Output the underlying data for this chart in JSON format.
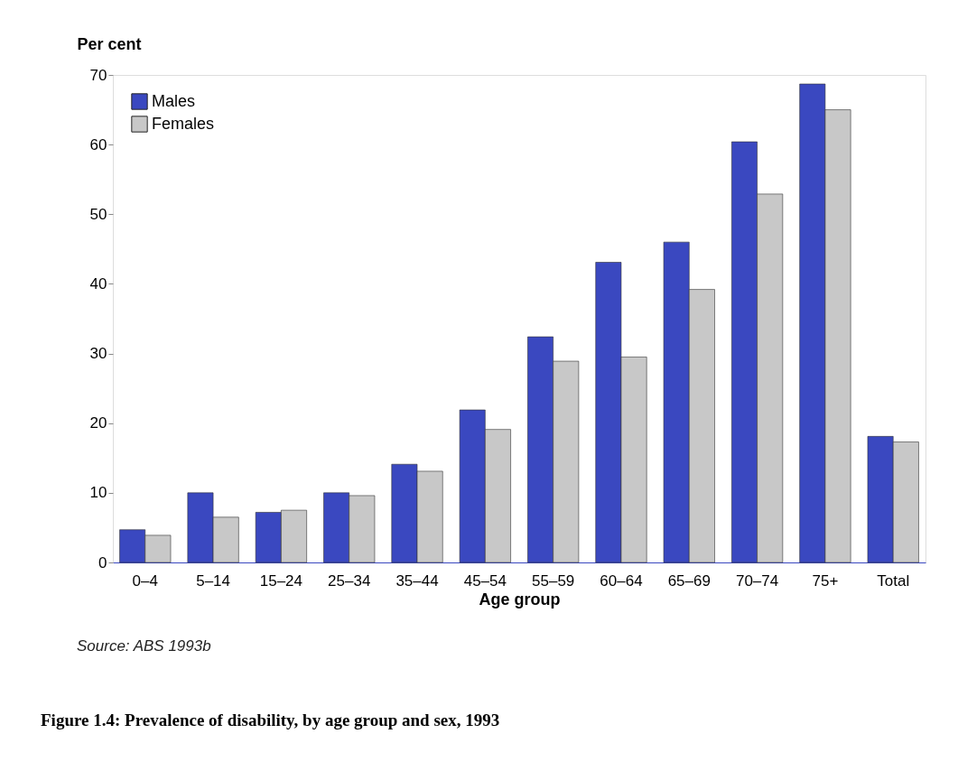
{
  "chart_data": {
    "type": "bar",
    "title": "Figure 1.4: Prevalence of disability, by age group and sex, 1993",
    "xlabel": "Age group",
    "ylabel": "Per cent",
    "categories": [
      "0–4",
      "5–14",
      "15–24",
      "25–34",
      "35–44",
      "45–54",
      "55–59",
      "60–64",
      "65–69",
      "70–74",
      "75+",
      "Total"
    ],
    "series": [
      {
        "name": "Males",
        "color": "#3a48c0",
        "values": [
          4.7,
          10.0,
          7.2,
          10.0,
          14.1,
          21.9,
          32.4,
          43.1,
          46.0,
          60.4,
          68.7,
          18.1
        ]
      },
      {
        "name": "Females",
        "color": "#c8c8c8",
        "values": [
          3.9,
          6.5,
          7.5,
          9.6,
          13.1,
          19.1,
          28.9,
          29.5,
          39.2,
          52.9,
          65.0,
          17.3
        ]
      }
    ],
    "ylim": [
      0,
      70
    ],
    "yticks": [
      0,
      10,
      20,
      30,
      40,
      50,
      60,
      70
    ],
    "grid": false,
    "legend": "top left",
    "annotations": [
      "Source: ABS 1993b"
    ]
  }
}
